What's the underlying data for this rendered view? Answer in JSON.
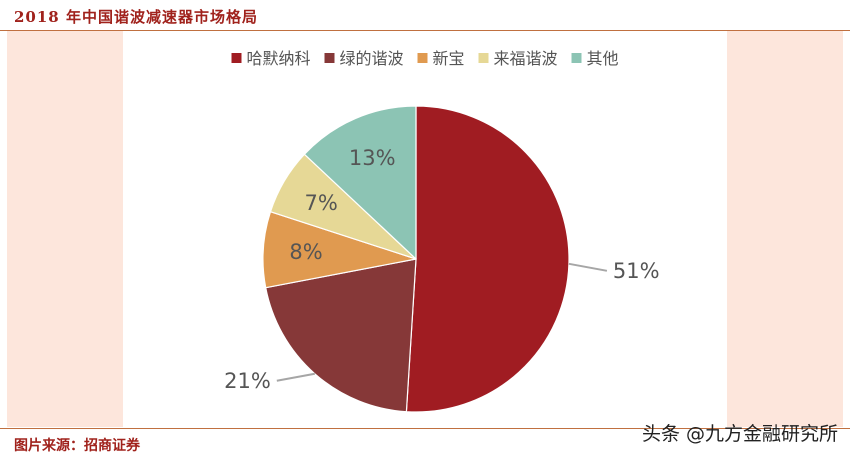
{
  "header": {
    "title": "2018 年中国谐波减速器市场格局"
  },
  "footer": {
    "source": "图片来源：招商证券",
    "watermark": "头条 @九方金融研究所"
  },
  "colors": {
    "accent": "#a0221c",
    "panel_bg": "#fde6dc",
    "label_text": "#555555",
    "leader_line": "#a6a6a6"
  },
  "chart_data": {
    "type": "pie",
    "title": "",
    "legend_position": "top",
    "slices": [
      {
        "name": "哈默纳科",
        "value": 51,
        "label": "51%",
        "color": "#a01c22"
      },
      {
        "name": "绿的谐波",
        "value": 21,
        "label": "21%",
        "color": "#863838"
      },
      {
        "name": "新宝",
        "value": 8,
        "label": "8%",
        "color": "#e09a50"
      },
      {
        "name": "来福谐波",
        "value": 7,
        "label": "7%",
        "color": "#e6d896"
      },
      {
        "name": "其他",
        "value": 13,
        "label": "13%",
        "color": "#8cc4b4"
      }
    ]
  }
}
